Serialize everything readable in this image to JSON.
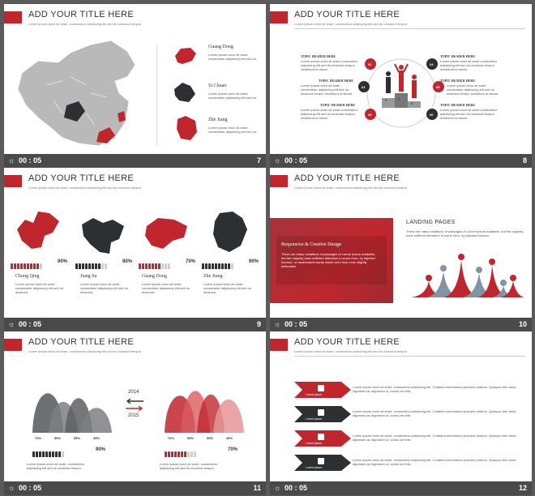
{
  "common": {
    "title": "ADD YOUR TITLE HERE",
    "subtitle": "Lorem ipsum dolor sit amet, consectetur adipiscing elit sed do eiusmod tempor",
    "time": "00 : 05",
    "clock_icon": "clock-icon"
  },
  "colors": {
    "accent": "#c0272d",
    "dark": "#2d3033",
    "grey": "#bdbdbd"
  },
  "slides": [
    {
      "number": "7",
      "items": [
        {
          "name": "Guang Dong",
          "desc": "Lorem ipsum dolor sit amet, consectetur adipiscing elit sed do."
        },
        {
          "name": "Si Chuan",
          "desc": "Lorem ipsum dolor sit amet, consectetur adipiscing elit sed do."
        },
        {
          "name": "Zhe Jiang",
          "desc": "Lorem ipsum dolor sit amet, consectetur adipiscing elit sed do."
        }
      ]
    },
    {
      "number": "8",
      "topics": [
        "TOPIC HEADER HERE",
        "TOPIC HEADER HERE",
        "TOPIC HEADER HERE",
        "TOPIC HEADER HERE",
        "TOPIC HEADER HERE",
        "TOPIC HEADER HERE"
      ],
      "topic_text": "Lorem ipsum dolor sit amet consectetur adipiscing elit sed do eiusmod tempor incididunt ut labore",
      "badges": [
        "01",
        "02",
        "03",
        "04",
        "05",
        "06"
      ],
      "podium": [
        "2",
        "1",
        "3"
      ]
    },
    {
      "number": "9",
      "provinces": [
        {
          "name": "Chong Qing",
          "pct": "90%",
          "desc": "Lorem ipsum dolor sit amet, consectetur adipiscing elit sed do eiusmod."
        },
        {
          "name": "Jiang Su",
          "pct": "80%",
          "desc": "Lorem ipsum dolor sit amet, consectetur adipiscing elit sed do eiusmod."
        },
        {
          "name": "Guang Dong",
          "pct": "70%",
          "desc": "Lorem ipsum dolor sit amet, consectetur adipiscing elit sed do eiusmod."
        },
        {
          "name": "Zhe Jiang",
          "pct": "90%",
          "desc": "Lorem ipsum dolor sit amet, consectetur adipiscing elit sed do eiusmod."
        }
      ]
    },
    {
      "number": "10",
      "panel_title": "Responsive & Creative Design",
      "panel_text": "There are many variations of passages of Lorem Ipsum available, but the majority have suffered alteration in some form, by injected humour, or randomised words which don't look even slightly believable.",
      "heading": "LANDING PAGES",
      "text": "There are many variations of passages of Lorem Ipsum available, but the majority have suffered alteration in some form, by injected humour."
    },
    {
      "number": "11",
      "year_top": "2014",
      "year_bottom": "2015",
      "left_labels": [
        "70%",
        "55%",
        "55%",
        "45%"
      ],
      "right_labels": [
        "70%",
        "55%",
        "55%",
        "45%"
      ],
      "left_pct": "90%",
      "right_pct": "70%",
      "left_text": "Lorem ipsum dolor sit amet, consectetur adipiscing elit sed do eiusmod tempor.",
      "right_text": "Lorem ipsum dolor sit amet, consectetur adipiscing elit sed do eiusmod tempor."
    },
    {
      "number": "12",
      "rows": [
        {
          "label": "Lorem ipsum",
          "text": "Lorem ipsum dolor sit amet, consectetur adipiscing elit. Curabitur elementum posuere pretium. Quisque nibh dolor, dignissim ac dignissim ut, luctus vel felis."
        },
        {
          "label": "Lorem ipsum",
          "text": "Lorem ipsum dolor sit amet, consectetur adipiscing elit. Curabitur elementum posuere pretium. Quisque nibh dolor, dignissim ac dignissim ut, luctus vel felis."
        },
        {
          "label": "Lorem ipsum",
          "text": "Lorem ipsum dolor sit amet, consectetur adipiscing elit. Curabitur elementum posuere pretium. Quisque nibh dolor, dignissim ac dignissim ut, luctus vel felis."
        },
        {
          "label": "Lorem ipsum",
          "text": "Lorem ipsum dolor sit amet, consectetur adipiscing elit. Curabitur elementum posuere pretium. Quisque nibh dolor, dignissim ac dignissim ut, luctus vel felis."
        }
      ]
    }
  ]
}
